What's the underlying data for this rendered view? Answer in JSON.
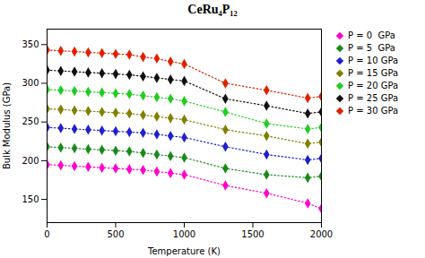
{
  "chart_data": {
    "type": "line",
    "title": "CeRu₄P₁₂",
    "xlabel": "Temperature (K)",
    "ylabel": "Bulk Modulus (GPa)",
    "x": [
      0,
      100,
      200,
      300,
      400,
      500,
      600,
      700,
      800,
      900,
      1000,
      1300,
      1600,
      1900,
      2000
    ],
    "series": [
      {
        "name": "P = 0  GPa",
        "color": "#ff00cc",
        "values": [
          195,
          194,
          193,
          192,
          191,
          190,
          189,
          188,
          186,
          184,
          182,
          168,
          158,
          145,
          138
        ]
      },
      {
        "name": "P = 5  GPa",
        "color": "#1a8a1a",
        "values": [
          218,
          217,
          216,
          215,
          214,
          213,
          212,
          210,
          208,
          206,
          204,
          190,
          182,
          178,
          180
        ]
      },
      {
        "name": "P = 10 GPa",
        "color": "#2020cc",
        "values": [
          243,
          242,
          241,
          240,
          239,
          238,
          237,
          236,
          234,
          232,
          230,
          218,
          208,
          201,
          203
        ]
      },
      {
        "name": "P = 15 GPa",
        "color": "#808000",
        "values": [
          267,
          266,
          265,
          264,
          263,
          262,
          261,
          259,
          257,
          255,
          253,
          240,
          232,
          222,
          224
        ]
      },
      {
        "name": "P = 20 GPa",
        "color": "#22cc22",
        "values": [
          292,
          291,
          290,
          289,
          288,
          287,
          286,
          284,
          282,
          280,
          277,
          263,
          248,
          241,
          243
        ]
      },
      {
        "name": "P = 25 GPa",
        "color": "#111111",
        "values": [
          317,
          316,
          315,
          314,
          313,
          312,
          311,
          309,
          307,
          305,
          303,
          280,
          271,
          261,
          263
        ]
      },
      {
        "name": "P = 30 GPa",
        "color": "#dd2200",
        "values": [
          343,
          342,
          341,
          340,
          339,
          338,
          337,
          334,
          332,
          328,
          325,
          300,
          291,
          281,
          283
        ]
      }
    ],
    "xlim": [
      0,
      2000
    ],
    "ylim": [
      120,
      370
    ],
    "xticks": [
      0,
      500,
      1000,
      1500,
      2000
    ],
    "yticks": [
      150,
      200,
      250,
      300,
      350
    ],
    "marker": "diamond",
    "line_style": "dotted",
    "legend": "upper right",
    "grid": false
  }
}
